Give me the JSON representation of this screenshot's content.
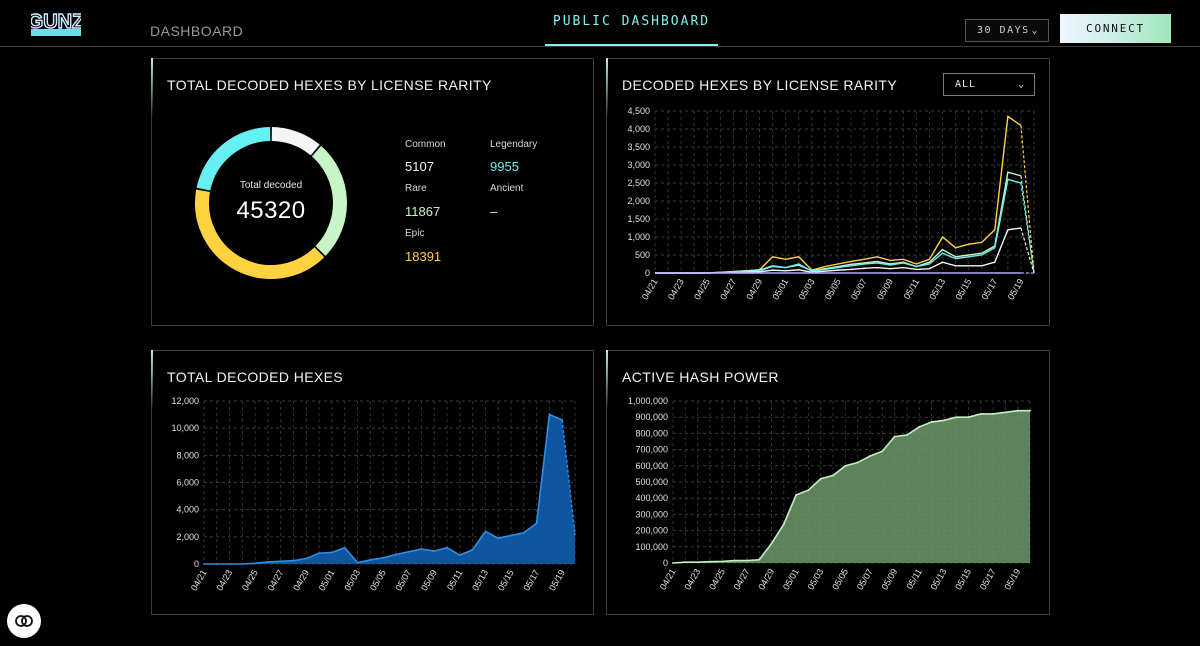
{
  "header": {
    "logo_text": "GUNZ",
    "nav_dashboard": "DASHBOARD",
    "nav_public": "PUBLIC DASHBOARD",
    "range": "30 DAYS",
    "connect": "CONNECT"
  },
  "colors": {
    "common": "#f5f5f5",
    "legendary": "#65f0f3",
    "rare": "#c7f5c8",
    "ancient": "#b9a6ff",
    "epic": "#ffd23f",
    "hexes_fill": "#0e5aa7",
    "hexes_line": "#2f8fe6",
    "hash_fill": "#6f9a6c",
    "hash_line": "#c4f2bd",
    "accent": "#7ff2f4"
  },
  "rarity_panel": {
    "title": "TOTAL DECODED HEXES BY LICENSE RARITY",
    "center_label": "Total decoded",
    "center_value": "45320",
    "legend": [
      {
        "name": "Common",
        "value": "5107",
        "key": "common"
      },
      {
        "name": "Legendary",
        "value": "9955",
        "key": "legendary"
      },
      {
        "name": "Rare",
        "value": "11867",
        "key": "rare"
      },
      {
        "name": "Ancient",
        "value": "–",
        "key": "ancient"
      },
      {
        "name": "Epic",
        "value": "18391",
        "key": "epic"
      }
    ]
  },
  "rarity_chart_panel": {
    "title": "DECODED HEXES BY LICENSE RARITY",
    "filter": "ALL"
  },
  "hexes_panel": {
    "title": "TOTAL DECODED HEXES"
  },
  "hash_panel": {
    "title": "ACTIVE HASH POWER"
  },
  "chart_data": [
    {
      "type": "pie",
      "categories": [
        "Common",
        "Rare",
        "Epic",
        "Legendary",
        "Ancient"
      ],
      "values": [
        5107,
        11867,
        18391,
        9955,
        0
      ],
      "title": "TOTAL DECODED HEXES BY LICENSE RARITY"
    },
    {
      "type": "line",
      "title": "DECODED HEXES BY LICENSE RARITY",
      "x": [
        "04/21",
        "04/22",
        "04/23",
        "04/24",
        "04/25",
        "04/26",
        "04/27",
        "04/28",
        "04/29",
        "04/30",
        "05/01",
        "05/02",
        "05/03",
        "05/04",
        "05/05",
        "05/06",
        "05/07",
        "05/08",
        "05/09",
        "05/10",
        "05/11",
        "05/12",
        "05/13",
        "05/14",
        "05/15",
        "05/16",
        "05/17",
        "05/18",
        "05/19",
        "05/20"
      ],
      "x_tick_labels": [
        "04/21",
        "04/23",
        "04/25",
        "04/27",
        "04/29",
        "05/01",
        "05/03",
        "05/05",
        "05/07",
        "05/09",
        "05/11",
        "05/13",
        "05/15",
        "05/17",
        "05/19"
      ],
      "ylim": [
        0,
        4500
      ],
      "y_ticks": [
        "0",
        "500",
        "1,000",
        "1,500",
        "2,000",
        "2,500",
        "3,000",
        "3,500",
        "4,000",
        "4,500"
      ],
      "series": [
        {
          "name": "Epic",
          "values": [
            0,
            0,
            0,
            0,
            0,
            20,
            40,
            60,
            90,
            450,
            380,
            450,
            80,
            180,
            250,
            320,
            380,
            450,
            350,
            380,
            250,
            380,
            1000,
            700,
            800,
            850,
            1200,
            4350,
            4100,
            0
          ]
        },
        {
          "name": "Rare",
          "values": [
            0,
            0,
            0,
            0,
            0,
            20,
            40,
            60,
            80,
            200,
            150,
            220,
            60,
            120,
            180,
            240,
            280,
            320,
            250,
            300,
            180,
            300,
            650,
            450,
            500,
            550,
            750,
            2800,
            2700,
            0
          ]
        },
        {
          "name": "Legendary",
          "values": [
            0,
            0,
            0,
            0,
            0,
            10,
            30,
            40,
            60,
            180,
            150,
            250,
            50,
            100,
            150,
            200,
            250,
            280,
            220,
            280,
            180,
            250,
            550,
            400,
            450,
            500,
            700,
            2600,
            2500,
            0
          ]
        },
        {
          "name": "Common",
          "values": [
            0,
            0,
            0,
            0,
            0,
            5,
            10,
            20,
            30,
            80,
            60,
            90,
            20,
            50,
            80,
            100,
            130,
            150,
            120,
            150,
            100,
            120,
            300,
            200,
            200,
            200,
            300,
            1200,
            1250,
            0
          ]
        },
        {
          "name": "Ancient",
          "values": [
            0,
            0,
            0,
            0,
            0,
            0,
            0,
            0,
            0,
            0,
            0,
            0,
            0,
            0,
            0,
            0,
            0,
            0,
            0,
            0,
            0,
            0,
            0,
            0,
            0,
            0,
            0,
            0,
            0,
            0
          ]
        }
      ]
    },
    {
      "type": "area",
      "title": "TOTAL DECODED HEXES",
      "x": [
        "04/21",
        "04/22",
        "04/23",
        "04/24",
        "04/25",
        "04/26",
        "04/27",
        "04/28",
        "04/29",
        "04/30",
        "05/01",
        "05/02",
        "05/03",
        "05/04",
        "05/05",
        "05/06",
        "05/07",
        "05/08",
        "05/09",
        "05/10",
        "05/11",
        "05/12",
        "05/13",
        "05/14",
        "05/15",
        "05/16",
        "05/17",
        "05/18",
        "05/19",
        "05/20"
      ],
      "x_tick_labels": [
        "04/21",
        "04/23",
        "04/25",
        "04/27",
        "04/29",
        "05/01",
        "05/03",
        "05/05",
        "05/07",
        "05/09",
        "05/11",
        "05/13",
        "05/15",
        "05/17",
        "05/19"
      ],
      "ylim": [
        0,
        12000
      ],
      "y_ticks": [
        "0",
        "2,000",
        "4,000",
        "6,000",
        "8,000",
        "10,000",
        "12,000"
      ],
      "values": [
        0,
        0,
        0,
        0,
        50,
        150,
        200,
        250,
        400,
        800,
        850,
        1200,
        100,
        300,
        450,
        700,
        900,
        1100,
        950,
        1200,
        650,
        1050,
        2400,
        1900,
        2100,
        2300,
        3000,
        11000,
        10600,
        2200
      ]
    },
    {
      "type": "area",
      "title": "ACTIVE HASH POWER",
      "x": [
        "04/21",
        "04/22",
        "04/23",
        "04/24",
        "04/25",
        "04/26",
        "04/27",
        "04/28",
        "04/29",
        "04/30",
        "05/01",
        "05/02",
        "05/03",
        "05/04",
        "05/05",
        "05/06",
        "05/07",
        "05/08",
        "05/09",
        "05/10",
        "05/11",
        "05/12",
        "05/13",
        "05/14",
        "05/15",
        "05/16",
        "05/17",
        "05/18",
        "05/19",
        "05/20"
      ],
      "x_tick_labels": [
        "04/21",
        "04/23",
        "04/25",
        "04/27",
        "04/29",
        "05/01",
        "05/03",
        "05/05",
        "05/07",
        "05/09",
        "05/11",
        "05/13",
        "05/15",
        "05/17",
        "05/19"
      ],
      "ylim": [
        0,
        1000000
      ],
      "y_ticks": [
        "0",
        "100,000",
        "200,000",
        "300,000",
        "400,000",
        "500,000",
        "600,000",
        "700,000",
        "800,000",
        "900,000",
        "1,000,000"
      ],
      "values": [
        0,
        5000,
        5000,
        8000,
        10000,
        15000,
        15000,
        20000,
        120000,
        240000,
        420000,
        450000,
        520000,
        540000,
        600000,
        620000,
        660000,
        690000,
        780000,
        790000,
        840000,
        870000,
        880000,
        900000,
        900000,
        920000,
        920000,
        930000,
        940000,
        940000
      ]
    }
  ]
}
